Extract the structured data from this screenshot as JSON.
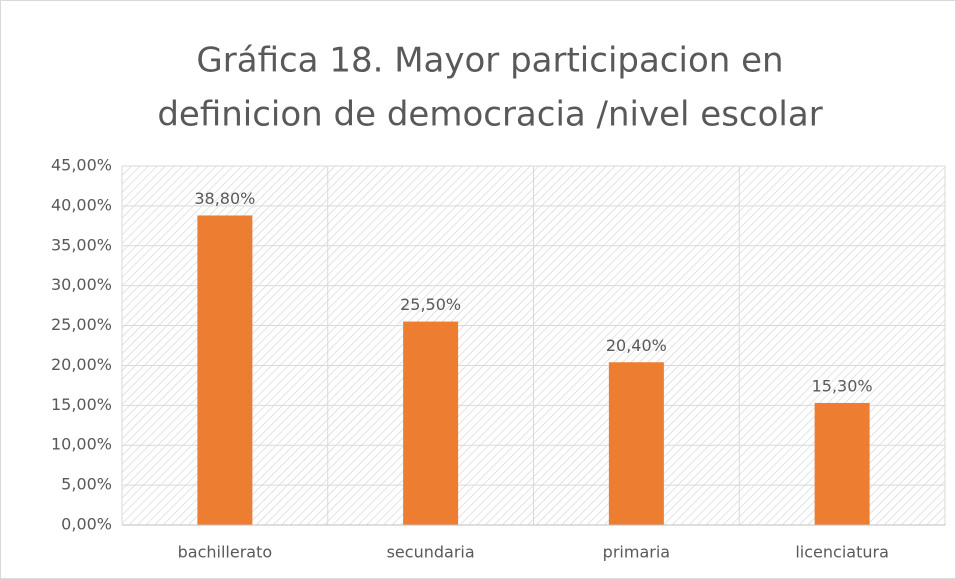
{
  "chart_data": {
    "type": "bar",
    "title": [
      "Gráfica 18. Mayor participacion en",
      "definicion de democracia /nivel escolar"
    ],
    "categories": [
      "bachillerato",
      "secundaria",
      "primaria",
      "licenciatura"
    ],
    "values": [
      38.8,
      25.5,
      20.4,
      15.3
    ],
    "value_labels": [
      "38,80%",
      "25,50%",
      "20,40%",
      "15,30%"
    ],
    "color": "#ed7d31",
    "ylim": [
      0,
      45
    ],
    "yticks": [
      {
        "value": 0,
        "label": "0,00%"
      },
      {
        "value": 5,
        "label": "5,00%"
      },
      {
        "value": 10,
        "label": "10,00%"
      },
      {
        "value": 15,
        "label": "15,00%"
      },
      {
        "value": 20,
        "label": "20,00%"
      },
      {
        "value": 25,
        "label": "25,00%"
      },
      {
        "value": 30,
        "label": "30,00%"
      },
      {
        "value": 35,
        "label": "35,00%"
      },
      {
        "value": 40,
        "label": "40,00%"
      },
      {
        "value": 45,
        "label": "45,00%"
      }
    ],
    "grid": true
  }
}
